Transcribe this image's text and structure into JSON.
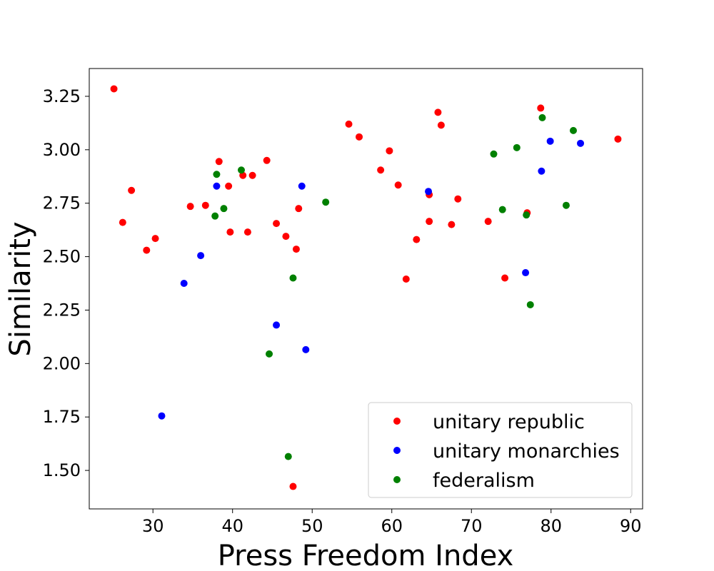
{
  "chart_data": {
    "type": "scatter",
    "xlabel": "Press Freedom Index",
    "ylabel": "Similarity",
    "xlim": [
      22,
      91.5
    ],
    "ylim": [
      1.32,
      3.38
    ],
    "xticks": [
      "30",
      "40",
      "50",
      "60",
      "70",
      "80",
      "90"
    ],
    "yticks": [
      "1.50",
      "1.75",
      "2.00",
      "2.25",
      "2.50",
      "2.75",
      "3.00",
      "3.25"
    ],
    "grid": false,
    "legend_position": "bottom-right",
    "series": [
      {
        "name": "unitary republic",
        "color": "#ff0000",
        "points": [
          [
            25.1,
            3.285
          ],
          [
            26.2,
            2.66
          ],
          [
            27.3,
            2.81
          ],
          [
            29.2,
            2.53
          ],
          [
            30.3,
            2.585
          ],
          [
            34.7,
            2.735
          ],
          [
            36.6,
            2.74
          ],
          [
            38.3,
            2.945
          ],
          [
            39.5,
            2.83
          ],
          [
            39.7,
            2.615
          ],
          [
            41.3,
            2.88
          ],
          [
            41.9,
            2.615
          ],
          [
            42.5,
            2.88
          ],
          [
            44.3,
            2.95
          ],
          [
            45.5,
            2.655
          ],
          [
            46.7,
            2.595
          ],
          [
            48.0,
            2.535
          ],
          [
            48.3,
            2.725
          ],
          [
            47.6,
            1.425
          ],
          [
            54.6,
            3.12
          ],
          [
            55.9,
            3.06
          ],
          [
            58.6,
            2.905
          ],
          [
            59.7,
            2.995
          ],
          [
            60.8,
            2.835
          ],
          [
            61.8,
            2.395
          ],
          [
            63.1,
            2.58
          ],
          [
            64.7,
            2.79
          ],
          [
            64.7,
            2.665
          ],
          [
            65.8,
            3.175
          ],
          [
            66.2,
            3.115
          ],
          [
            67.5,
            2.65
          ],
          [
            68.3,
            2.77
          ],
          [
            72.1,
            2.665
          ],
          [
            74.2,
            2.4
          ],
          [
            77.0,
            2.705
          ],
          [
            78.7,
            3.195
          ],
          [
            88.4,
            3.05
          ]
        ]
      },
      {
        "name": "unitary monarchies",
        "color": "#0000ff",
        "points": [
          [
            31.1,
            1.755
          ],
          [
            33.9,
            2.375
          ],
          [
            36.0,
            2.505
          ],
          [
            38.0,
            2.83
          ],
          [
            45.5,
            2.18
          ],
          [
            48.7,
            2.83
          ],
          [
            49.2,
            2.065
          ],
          [
            64.6,
            2.805
          ],
          [
            76.8,
            2.425
          ],
          [
            78.8,
            2.9
          ],
          [
            79.9,
            3.04
          ],
          [
            83.7,
            3.03
          ]
        ]
      },
      {
        "name": "federalism",
        "color": "#008000",
        "points": [
          [
            37.8,
            2.69
          ],
          [
            38.0,
            2.885
          ],
          [
            38.9,
            2.725
          ],
          [
            41.1,
            2.905
          ],
          [
            44.6,
            2.045
          ],
          [
            47.0,
            1.565
          ],
          [
            47.6,
            2.4
          ],
          [
            51.7,
            2.755
          ],
          [
            72.8,
            2.98
          ],
          [
            73.9,
            2.72
          ],
          [
            75.7,
            3.01
          ],
          [
            76.9,
            2.695
          ],
          [
            77.4,
            2.275
          ],
          [
            78.9,
            3.15
          ],
          [
            81.9,
            2.74
          ],
          [
            82.8,
            3.09
          ]
        ]
      }
    ]
  }
}
